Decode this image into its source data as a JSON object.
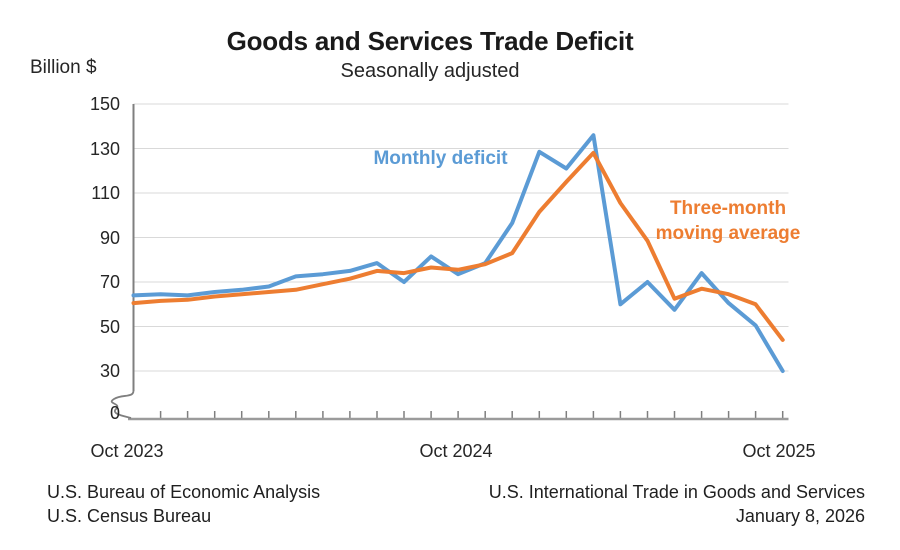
{
  "title": "Goods and Services Trade Deficit",
  "subtitle": "Seasonally adjusted",
  "y_axis_unit_label": "Billion $",
  "series_labels": {
    "monthly": "Monthly deficit",
    "moving_average_line1": "Three-month",
    "moving_average_line2": "moving average"
  },
  "footer": {
    "left_line1": "U.S. Bureau of Economic Analysis",
    "left_line2": "U.S. Census Bureau",
    "right_line1": "U.S. International Trade in Goods and Services",
    "right_line2": "January 8, 2026"
  },
  "colors": {
    "monthly_deficit": "#5B9BD5",
    "moving_average": "#ED7D31",
    "gridline": "#D9D9D9",
    "axis": "#7F7F7F",
    "baseline": "#9B9B9B",
    "text": "#262626"
  },
  "chart_data": {
    "type": "line",
    "title": "Goods and Services Trade Deficit",
    "subtitle": "Seasonally adjusted",
    "ylabel": "Billion $",
    "ylim": [
      0,
      150
    ],
    "y_ticks": [
      150,
      130,
      110,
      90,
      70,
      50,
      30,
      0
    ],
    "y_axis_break_between_0_and_30": true,
    "grid": true,
    "legend_position": "inline-labels",
    "x": [
      "Oct 2023",
      "Nov 2023",
      "Dec 2023",
      "Jan 2024",
      "Feb 2024",
      "Mar 2024",
      "Apr 2024",
      "May 2024",
      "Jun 2024",
      "Jul 2024",
      "Aug 2024",
      "Sep 2024",
      "Oct 2024",
      "Nov 2024",
      "Dec 2024",
      "Jan 2025",
      "Feb 2025",
      "Mar 2025",
      "Apr 2025",
      "May 2025",
      "Jun 2025",
      "Jul 2025",
      "Aug 2025",
      "Sep 2025",
      "Oct 2025"
    ],
    "x_tick_labels": [
      {
        "label": "Oct 2023",
        "month_index": 0
      },
      {
        "label": "Oct 2024",
        "month_index": 12
      },
      {
        "label": "Oct 2025",
        "month_index": 24
      }
    ],
    "series": [
      {
        "name": "Monthly deficit",
        "color": "#5B9BD5",
        "values": [
          64,
          64.5,
          64,
          65.5,
          66.5,
          68,
          72.5,
          73.5,
          75,
          78.5,
          70,
          81.5,
          73.5,
          78.5,
          96.5,
          128.5,
          121,
          136,
          60,
          70,
          57.5,
          74,
          60.5,
          50.5,
          30
        ]
      },
      {
        "name": "Three-month moving average",
        "color": "#ED7D31",
        "values": [
          60.5,
          61.5,
          62,
          63.5,
          64.5,
          65.5,
          66.5,
          69,
          71.5,
          75,
          74,
          76.5,
          75.5,
          78,
          83,
          101.5,
          115,
          128,
          105.5,
          88.5,
          62.5,
          67,
          64.5,
          60,
          44
        ]
      }
    ]
  }
}
